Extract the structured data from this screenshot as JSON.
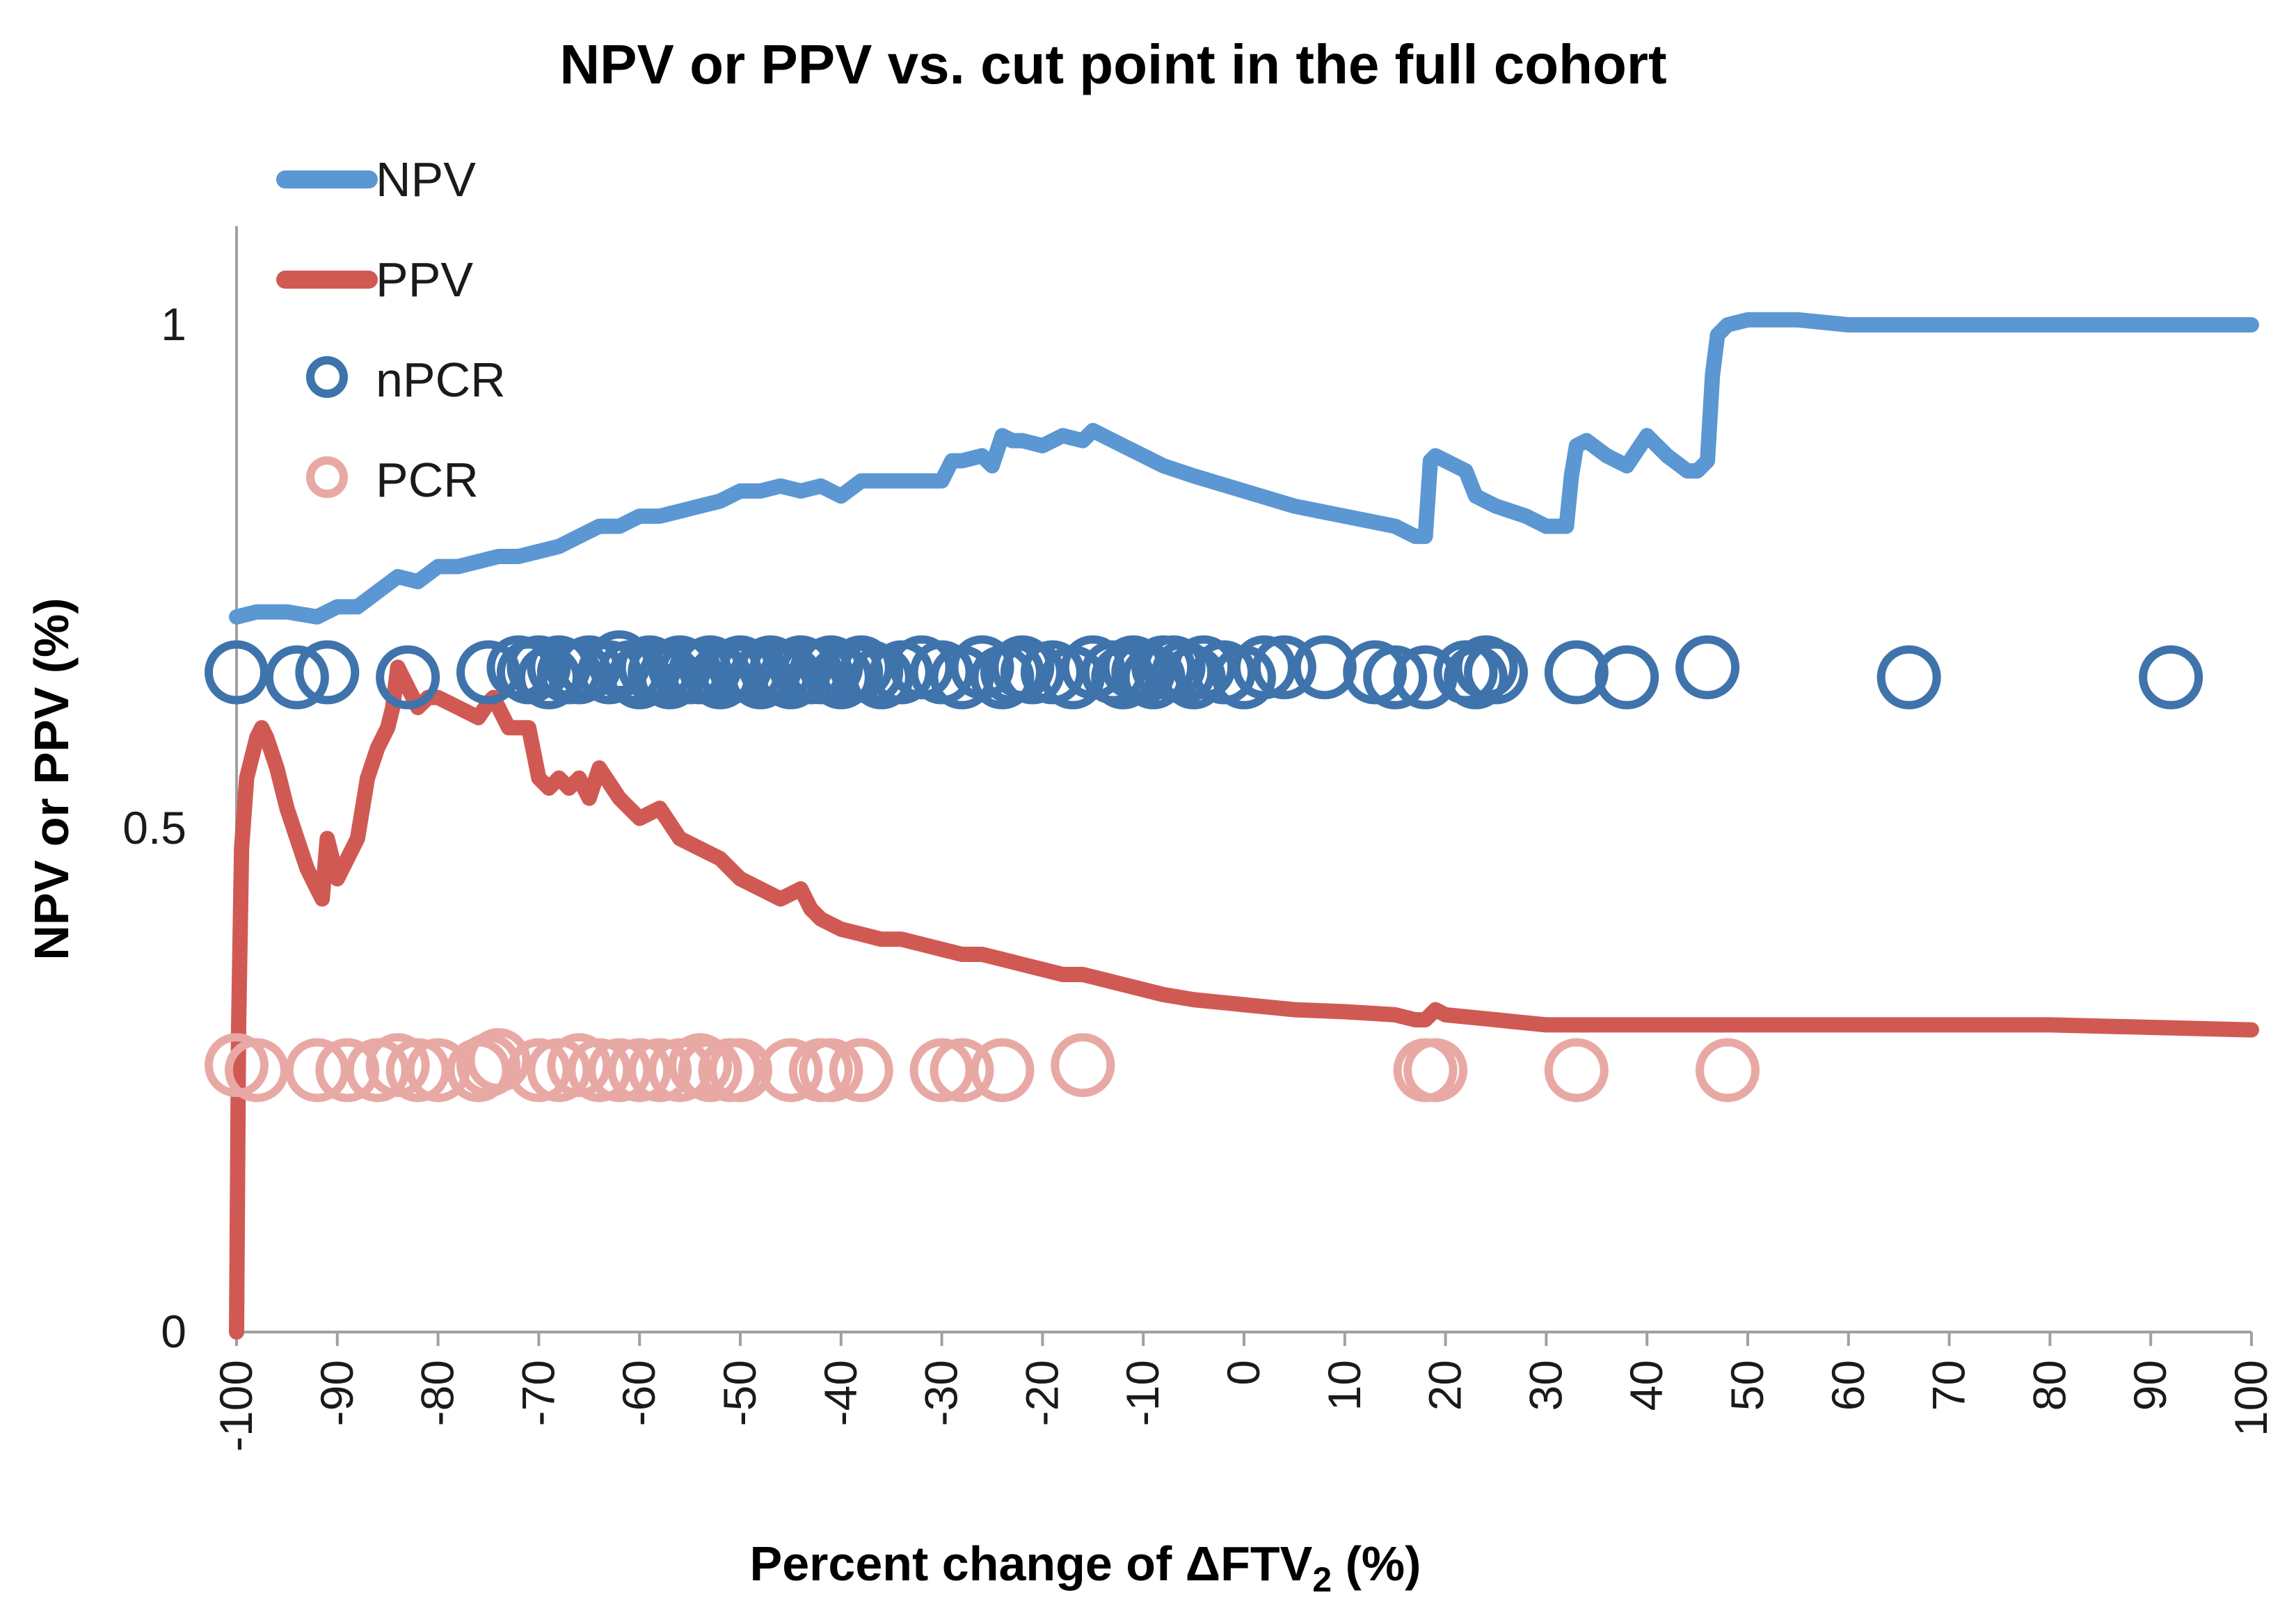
{
  "chart_data": {
    "type": "line",
    "title": "NPV or PPV vs. cut point in the full cohort",
    "xlabel": "Percent change of ΔFTV",
    "xlabel_subscript": "2",
    "xlabel_suffix": " (%)",
    "ylabel": "NPV or PPV (%)",
    "xlim": [
      -100,
      100
    ],
    "ylim": [
      0,
      1.1
    ],
    "grid": false,
    "legend_position": "top-left",
    "x_ticks": [
      -100,
      -90,
      -80,
      -70,
      -60,
      -50,
      -40,
      -30,
      -20,
      -10,
      0,
      10,
      20,
      30,
      40,
      50,
      60,
      70,
      80,
      90,
      100
    ],
    "x_tick_labels": [
      "-100",
      "-90",
      "-80",
      "-70",
      "-60",
      "-50",
      "-40",
      "-30",
      "-20",
      "-10",
      "0",
      "10",
      "20",
      "30",
      "40",
      "50",
      "60",
      "70",
      "80",
      "90",
      "100"
    ],
    "y_ticks": [
      0,
      0.5,
      1
    ],
    "y_tick_labels": [
      "0",
      "0.5",
      "1"
    ],
    "series": [
      {
        "name": "NPV",
        "kind": "line",
        "color": "#5b97d2",
        "x": [
          -100,
          -98,
          -95,
          -92,
          -90,
          -88,
          -86,
          -84,
          -82,
          -80,
          -78,
          -76,
          -74,
          -72,
          -70,
          -68,
          -66,
          -64,
          -62,
          -60,
          -58,
          -56,
          -54,
          -52,
          -50,
          -48,
          -46,
          -44,
          -42,
          -40,
          -38,
          -36,
          -34,
          -32,
          -30,
          -29,
          -28,
          -26,
          -25,
          -24,
          -23,
          -22,
          -20,
          -18,
          -16,
          -15,
          -14,
          -12,
          -10,
          -8,
          -5,
          0,
          5,
          10,
          15,
          17,
          18,
          18.5,
          19,
          20,
          22,
          23,
          25,
          28,
          30,
          32,
          32.5,
          33,
          34,
          36,
          38,
          40,
          42,
          44,
          45,
          46,
          46.5,
          47,
          48,
          50,
          55,
          60,
          70,
          80,
          90,
          100
        ],
        "y": [
          0.71,
          0.715,
          0.715,
          0.71,
          0.72,
          0.72,
          0.735,
          0.75,
          0.745,
          0.76,
          0.76,
          0.765,
          0.77,
          0.77,
          0.775,
          0.78,
          0.79,
          0.8,
          0.8,
          0.81,
          0.81,
          0.815,
          0.82,
          0.825,
          0.835,
          0.835,
          0.84,
          0.835,
          0.84,
          0.83,
          0.845,
          0.845,
          0.845,
          0.845,
          0.845,
          0.865,
          0.865,
          0.87,
          0.86,
          0.89,
          0.885,
          0.885,
          0.88,
          0.89,
          0.885,
          0.895,
          0.89,
          0.88,
          0.87,
          0.86,
          0.85,
          0.835,
          0.82,
          0.81,
          0.8,
          0.79,
          0.79,
          0.865,
          0.87,
          0.865,
          0.855,
          0.83,
          0.82,
          0.81,
          0.8,
          0.8,
          0.85,
          0.88,
          0.885,
          0.87,
          0.86,
          0.89,
          0.87,
          0.855,
          0.855,
          0.865,
          0.95,
          0.99,
          1.0,
          1.005,
          1.005,
          1.0,
          1.0,
          1.0,
          1.0,
          1.0
        ]
      },
      {
        "name": "PPV",
        "kind": "line",
        "color": "#d05a53",
        "x": [
          -100,
          -99.8,
          -99.5,
          -99,
          -98,
          -97.5,
          -97,
          -96,
          -95,
          -94,
          -93,
          -92,
          -91.5,
          -91,
          -90.5,
          -90,
          -89,
          -88,
          -87,
          -86,
          -85,
          -84.5,
          -84,
          -83,
          -82,
          -81,
          -80,
          -78,
          -76,
          -75,
          -74.5,
          -74,
          -73,
          -72,
          -71,
          -70,
          -69,
          -68,
          -67,
          -66,
          -65,
          -64,
          -62,
          -60,
          -58,
          -56,
          -54,
          -52,
          -50,
          -48,
          -46,
          -44,
          -43,
          -42,
          -40,
          -38,
          -36,
          -34,
          -32,
          -30,
          -28,
          -26,
          -24,
          -22,
          -20,
          -18,
          -16,
          -14,
          -12,
          -10,
          -8,
          -5,
          0,
          5,
          10,
          15,
          17,
          18,
          19,
          20,
          25,
          30,
          40,
          50,
          60,
          80,
          100
        ],
        "y": [
          0.0,
          0.3,
          0.48,
          0.55,
          0.59,
          0.6,
          0.59,
          0.56,
          0.52,
          0.49,
          0.46,
          0.44,
          0.43,
          0.49,
          0.47,
          0.45,
          0.47,
          0.49,
          0.55,
          0.58,
          0.6,
          0.62,
          0.66,
          0.64,
          0.62,
          0.63,
          0.63,
          0.62,
          0.61,
          0.625,
          0.63,
          0.62,
          0.6,
          0.6,
          0.6,
          0.55,
          0.54,
          0.55,
          0.54,
          0.55,
          0.53,
          0.56,
          0.53,
          0.51,
          0.52,
          0.49,
          0.48,
          0.47,
          0.45,
          0.44,
          0.43,
          0.44,
          0.42,
          0.41,
          0.4,
          0.395,
          0.39,
          0.39,
          0.385,
          0.38,
          0.375,
          0.375,
          0.37,
          0.365,
          0.36,
          0.355,
          0.355,
          0.35,
          0.345,
          0.34,
          0.335,
          0.33,
          0.325,
          0.32,
          0.318,
          0.315,
          0.31,
          0.31,
          0.32,
          0.315,
          0.31,
          0.305,
          0.305,
          0.305,
          0.305,
          0.305,
          0.3
        ]
      },
      {
        "name": "nPCR",
        "kind": "scatter",
        "color": "#3f73ab",
        "x": [
          -100,
          -94,
          -91,
          -83,
          -75,
          -72,
          -71,
          -70,
          -69,
          -68,
          -67,
          -66,
          -65,
          -63,
          -62,
          -61,
          -60,
          -59,
          -58,
          -57,
          -56,
          -55,
          -54,
          -53,
          -52,
          -51,
          -50,
          -49,
          -48,
          -47,
          -46,
          -45,
          -44,
          -43,
          -42,
          -41,
          -40,
          -39,
          -38,
          -37,
          -36,
          -34,
          -32,
          -30,
          -28,
          -26,
          -24,
          -23,
          -22,
          -21,
          -19,
          -17,
          -15,
          -13,
          -12,
          -11,
          -10,
          -9,
          -8,
          -7,
          -6,
          -5,
          -4,
          -2,
          0,
          2,
          4,
          8,
          13,
          15,
          18,
          22,
          23,
          24,
          25,
          33,
          38,
          46,
          66,
          92
        ],
        "y": [
          0.655,
          0.65,
          0.655,
          0.65,
          0.655,
          0.66,
          0.655,
          0.66,
          0.65,
          0.66,
          0.655,
          0.655,
          0.66,
          0.655,
          0.665,
          0.655,
          0.65,
          0.66,
          0.655,
          0.65,
          0.66,
          0.655,
          0.655,
          0.66,
          0.65,
          0.655,
          0.66,
          0.655,
          0.65,
          0.66,
          0.655,
          0.65,
          0.66,
          0.655,
          0.655,
          0.66,
          0.65,
          0.655,
          0.66,
          0.655,
          0.65,
          0.655,
          0.66,
          0.655,
          0.65,
          0.66,
          0.65,
          0.655,
          0.66,
          0.655,
          0.655,
          0.65,
          0.66,
          0.655,
          0.65,
          0.66,
          0.655,
          0.65,
          0.66,
          0.66,
          0.655,
          0.65,
          0.66,
          0.655,
          0.65,
          0.66,
          0.66,
          0.66,
          0.655,
          0.65,
          0.65,
          0.655,
          0.65,
          0.66,
          0.655,
          0.655,
          0.65,
          0.66,
          0.65,
          0.65
        ]
      },
      {
        "name": "PCR",
        "kind": "scatter",
        "color": "#e8a9a5",
        "x": [
          -100,
          -98,
          -92,
          -89,
          -86,
          -84,
          -82,
          -80,
          -76,
          -75,
          -74,
          -70,
          -68,
          -66,
          -64,
          -62,
          -60,
          -58,
          -56,
          -54,
          -53,
          -51,
          -50,
          -45,
          -42,
          -41,
          -38,
          -30,
          -28,
          -24,
          -16,
          18,
          19,
          33,
          48
        ],
        "y": [
          0.265,
          0.26,
          0.26,
          0.26,
          0.26,
          0.265,
          0.26,
          0.26,
          0.26,
          0.265,
          0.27,
          0.26,
          0.26,
          0.265,
          0.26,
          0.26,
          0.26,
          0.26,
          0.26,
          0.265,
          0.26,
          0.26,
          0.26,
          0.26,
          0.26,
          0.26,
          0.26,
          0.26,
          0.26,
          0.26,
          0.265,
          0.26,
          0.26,
          0.26,
          0.26
        ]
      }
    ]
  }
}
